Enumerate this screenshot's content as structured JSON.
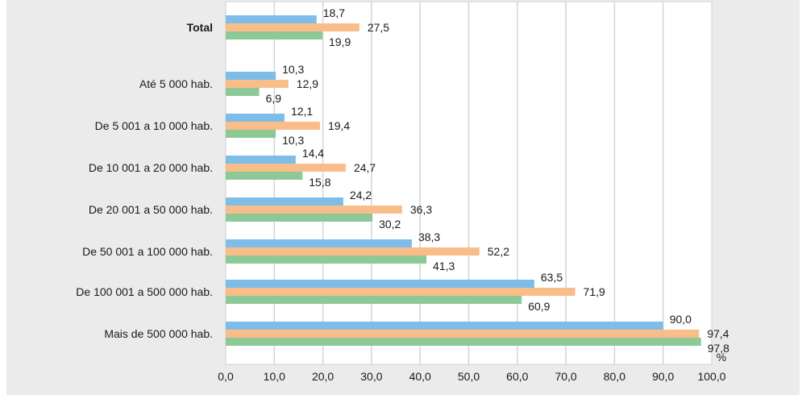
{
  "chart_data": {
    "type": "bar",
    "orientation": "horizontal",
    "title": "",
    "xlabel": "%",
    "ylabel": "",
    "xlim": [
      0,
      100
    ],
    "grid": true,
    "legend": "none",
    "categories": [
      "Total",
      "Até 5 000 hab.",
      "De 5 001 a 10 000 hab.",
      "De 10 001 a 20 000 hab.",
      "De 20 001 a 50 000 hab.",
      "De 50 001 a 100 000 hab.",
      "De 100 001 a 500 000 hab.",
      "Mais de 500 000 hab."
    ],
    "bold_categories": [
      "Total"
    ],
    "series": [
      {
        "name": "Series 1",
        "color": "#7dbde8",
        "values": [
          18.7,
          10.3,
          12.1,
          14.4,
          24.2,
          38.3,
          63.5,
          90.0
        ],
        "labels": [
          "18,7",
          "10,3",
          "12,1",
          "14,4",
          "24,2",
          "38,3",
          "63,5",
          "90,0"
        ]
      },
      {
        "name": "Series 2",
        "color": "#f9bd8a",
        "values": [
          27.5,
          12.9,
          19.4,
          24.7,
          36.3,
          52.2,
          71.9,
          97.4
        ],
        "labels": [
          "27,5",
          "12,9",
          "19,4",
          "24,7",
          "36,3",
          "52,2",
          "71,9",
          "97,4"
        ]
      },
      {
        "name": "Series 3",
        "color": "#8dc897",
        "values": [
          19.9,
          6.9,
          10.3,
          15.8,
          30.2,
          41.3,
          60.9,
          97.8
        ],
        "labels": [
          "19,9",
          "6,9",
          "10,3",
          "15,8",
          "30,2",
          "41,3",
          "60,9",
          "97,8"
        ]
      }
    ],
    "x_ticks": [
      0,
      10,
      20,
      30,
      40,
      50,
      60,
      70,
      80,
      90,
      100
    ],
    "x_tick_labels": [
      "0,0",
      "10,0",
      "20,0",
      "30,0",
      "40,0",
      "50,0",
      "60,0",
      "70,0",
      "80,0",
      "90,0",
      "100,0"
    ],
    "unit_label": "%"
  }
}
